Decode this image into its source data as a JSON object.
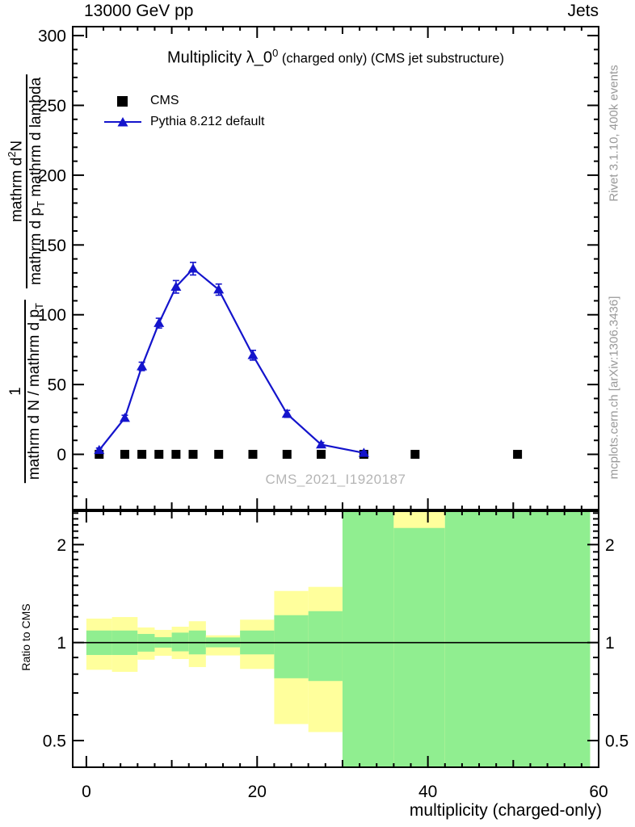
{
  "header": {
    "left": "13000 GeV pp",
    "right": "Jets"
  },
  "side_notes": {
    "top_right": "Rivet 3.1.10,  400k events",
    "bottom_right": "mcplots.cern.ch [arXiv:1306.3436]"
  },
  "watermark": "CMS_2021_I1920187",
  "plot_title": {
    "main": "Multiplicity λ_0",
    "sup": "0",
    "rest": " (charged only) (CMS jet substructure)"
  },
  "axis_labels": {
    "x": "multiplicity (charged-only)",
    "ratio_y": "Ratio to CMS",
    "y_frac1": {
      "num": "1",
      "den": "mathrm d N / mathrm d p",
      "den_sub": "T"
    },
    "y_frac2": {
      "num_a": "mathrm d",
      "num_sup": "2",
      "num_b": "N",
      "den_a": "mathrm d p",
      "den_sub": "T",
      "den_b": " mathrm d lambda"
    }
  },
  "legend": [
    {
      "label": "CMS",
      "marker": "square",
      "color": "#000000"
    },
    {
      "label": "Pythia 8.212 default",
      "marker": "triangle-line",
      "color": "#1414cc"
    }
  ],
  "colors": {
    "pythia_blue": "#1414cc",
    "band_yellow": "#ffff9c",
    "band_green": "#90ee90",
    "note_gray": "#999999",
    "watermark_gray": "#b5b5b5",
    "frame": "#000000"
  },
  "chart_data": {
    "type": "line",
    "title": "Multiplicity λ_0⁰ (charged only) (CMS jet substructure)",
    "xlabel": "multiplicity (charged-only)",
    "ylabel": "1/(dN/dp_T) d²N/(dp_T dλ)",
    "main_panel": {
      "xlim": [
        -1.6,
        60
      ],
      "ylim": [
        -39.6,
        306.4
      ],
      "x_major_ticks": [
        0,
        20,
        40,
        60
      ],
      "x_medium_step": 10,
      "x_minor_step": 2,
      "y_major_ticks": [
        0,
        50,
        100,
        150,
        200,
        250,
        300
      ],
      "y_minor_step": 10,
      "series": [
        {
          "name": "CMS",
          "type": "scatter",
          "marker": "square",
          "color": "#000000",
          "x": [
            1.5,
            4.5,
            6.5,
            8.5,
            10.5,
            12.5,
            15.5,
            19.5,
            23.5,
            27.5,
            32.5,
            38.5,
            50.5
          ],
          "y": [
            0,
            0,
            0,
            0,
            0,
            0,
            0,
            0,
            0,
            0,
            0,
            0,
            0
          ]
        },
        {
          "name": "Pythia 8.212 default",
          "type": "line_markers",
          "marker": "triangle",
          "color": "#1414cc",
          "x": [
            1.5,
            4.5,
            6.5,
            8.5,
            10.5,
            12.5,
            15.5,
            19.5,
            23.5,
            27.5,
            32.5
          ],
          "y": [
            3,
            26,
            63,
            94,
            120,
            133,
            118,
            71,
            29,
            7,
            1
          ],
          "yerr": [
            1.5,
            2,
            3,
            3.5,
            4.5,
            4.5,
            4,
            3.5,
            2.5,
            1.5,
            1
          ]
        }
      ]
    },
    "ratio_panel": {
      "xlim": [
        -1.6,
        60
      ],
      "ylim": [
        0.414,
        2.533
      ],
      "yscale": "log",
      "y_major_ticks": [
        0.5,
        1,
        2
      ],
      "reference_line": 1,
      "bands": [
        {
          "x0": 0,
          "x1": 3,
          "yellow": [
            0.825,
            1.185
          ],
          "green": [
            0.916,
            1.089
          ]
        },
        {
          "x0": 3,
          "x1": 6,
          "yellow": [
            0.813,
            1.198
          ],
          "green": [
            0.916,
            1.089
          ]
        },
        {
          "x0": 6,
          "x1": 8,
          "yellow": [
            0.886,
            1.113
          ],
          "green": [
            0.938,
            1.063
          ]
        },
        {
          "x0": 8,
          "x1": 10,
          "yellow": [
            0.911,
            1.094
          ],
          "green": [
            0.965,
            1.039
          ]
        },
        {
          "x0": 10,
          "x1": 12,
          "yellow": [
            0.89,
            1.119
          ],
          "green": [
            0.94,
            1.073
          ]
        },
        {
          "x0": 12,
          "x1": 14,
          "yellow": [
            0.841,
            1.163
          ],
          "green": [
            0.92,
            1.089
          ]
        },
        {
          "x0": 14,
          "x1": 18,
          "yellow": [
            0.913,
            1.053
          ],
          "green": [
            0.967,
            1.037
          ]
        },
        {
          "x0": 18,
          "x1": 22,
          "yellow": [
            0.83,
            1.176
          ],
          "green": [
            0.92,
            1.089
          ]
        },
        {
          "x0": 22,
          "x1": 26,
          "yellow": [
            0.562,
            1.441
          ],
          "green": [
            0.777,
            1.214
          ]
        },
        {
          "x0": 26,
          "x1": 30,
          "yellow": [
            0.531,
            1.483
          ],
          "green": [
            0.762,
            1.249
          ]
        },
        {
          "x0": 30,
          "x1": 36,
          "yellow": [
            0.414,
            2.533
          ],
          "green": [
            0.414,
            2.533
          ]
        },
        {
          "x0": 36,
          "x1": 42,
          "yellow": [
            0.414,
            2.533
          ],
          "green": [
            0.414,
            2.25
          ]
        },
        {
          "x0": 42,
          "x1": 59,
          "yellow": [
            0.414,
            2.533
          ],
          "green": [
            0.414,
            2.533
          ]
        }
      ]
    }
  }
}
